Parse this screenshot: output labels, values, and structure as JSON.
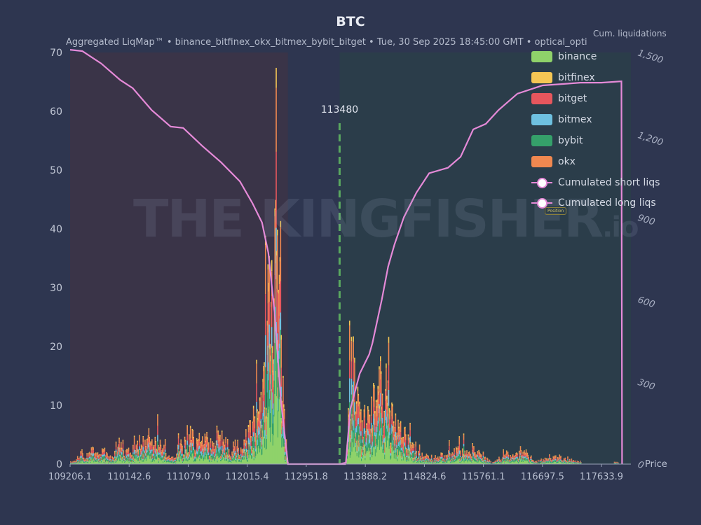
{
  "chart_data": {
    "type": "bar",
    "title": "BTC",
    "subtitle": "Aggregated LiqMap™  •  binance_bitfinex_okx_bitmex_bybit_bitget  •  Tue, 30 Sep 2025 18:45:00 GMT  •  optical_opti",
    "y2label": "Cum. liquidations",
    "xlabel": "Price",
    "ylim": [
      0,
      70
    ],
    "y2lim": [
      0,
      1500
    ],
    "xlim": [
      109206.1,
      118100
    ],
    "x_ticks": [
      "109206.1",
      "110142.6",
      "111079.0",
      "112015.4",
      "112951.8",
      "113888.2",
      "114824.6",
      "115761.1",
      "116697.5",
      "117633.9"
    ],
    "y_ticks": [
      "0",
      "10",
      "20",
      "30",
      "40",
      "50",
      "60",
      "70"
    ],
    "y2_ticks": [
      "0",
      "300",
      "600",
      "900",
      "1,200",
      "1,500"
    ],
    "current_price": 113480,
    "current_price_label": "113480",
    "legend": [
      "binance",
      "bitfinex",
      "bitget",
      "bitmex",
      "bybit",
      "okx",
      "Cumulated short liqs",
      "Cumulated long liqs"
    ],
    "colors": {
      "binance": "#8fd26a",
      "bitfinex": "#f5c654",
      "bitget": "#e6565d",
      "bitmex": "#6ec0e0",
      "bybit": "#35a06a",
      "okx": "#f08850",
      "cum_line": "#e58ad8",
      "current_price": "#5aa860"
    },
    "long_profile": [
      [
        109206,
        0.3
      ],
      [
        109550,
        2.5
      ],
      [
        109800,
        1.5
      ],
      [
        110000,
        4
      ],
      [
        110150,
        2
      ],
      [
        110350,
        5
      ],
      [
        110600,
        4
      ],
      [
        110800,
        1
      ],
      [
        111050,
        5
      ],
      [
        111350,
        4
      ],
      [
        111600,
        5
      ],
      [
        111900,
        3
      ],
      [
        112050,
        6
      ],
      [
        112200,
        10
      ],
      [
        112300,
        25
      ],
      [
        112400,
        45
      ],
      [
        112470,
        54
      ],
      [
        112530,
        40
      ],
      [
        112600,
        8
      ],
      [
        112660,
        0
      ]
    ],
    "short_profile": [
      [
        113580,
        0
      ],
      [
        113650,
        22
      ],
      [
        113720,
        15
      ],
      [
        113800,
        11
      ],
      [
        113900,
        8
      ],
      [
        114000,
        12
      ],
      [
        114120,
        18
      ],
      [
        114250,
        12
      ],
      [
        114400,
        7
      ],
      [
        114550,
        5
      ],
      [
        114750,
        2
      ],
      [
        115000,
        1
      ],
      [
        115300,
        3
      ],
      [
        115600,
        2.5
      ],
      [
        115900,
        0.5
      ],
      [
        116150,
        2
      ],
      [
        116400,
        2.5
      ],
      [
        116600,
        0.5
      ],
      [
        116850,
        1.5
      ],
      [
        117100,
        1
      ],
      [
        117400,
        0
      ],
      [
        117900,
        0.3
      ]
    ],
    "cum_long": [
      [
        109206,
        1510
      ],
      [
        109400,
        1505
      ],
      [
        109700,
        1460
      ],
      [
        110000,
        1400
      ],
      [
        110200,
        1370
      ],
      [
        110500,
        1290
      ],
      [
        110800,
        1230
      ],
      [
        111000,
        1225
      ],
      [
        111300,
        1160
      ],
      [
        111600,
        1100
      ],
      [
        111900,
        1030
      ],
      [
        112100,
        950
      ],
      [
        112250,
        880
      ],
      [
        112350,
        770
      ],
      [
        112450,
        550
      ],
      [
        112550,
        230
      ],
      [
        112660,
        0
      ],
      [
        113580,
        0
      ]
    ],
    "cum_short": [
      [
        113480,
        0
      ],
      [
        113580,
        5
      ],
      [
        113650,
        200
      ],
      [
        113800,
        330
      ],
      [
        113950,
        400
      ],
      [
        114000,
        440
      ],
      [
        114150,
        600
      ],
      [
        114250,
        720
      ],
      [
        114350,
        800
      ],
      [
        114500,
        900
      ],
      [
        114700,
        990
      ],
      [
        114900,
        1060
      ],
      [
        115200,
        1080
      ],
      [
        115400,
        1120
      ],
      [
        115600,
        1220
      ],
      [
        115800,
        1240
      ],
      [
        116000,
        1290
      ],
      [
        116300,
        1350
      ],
      [
        116700,
        1380
      ],
      [
        117000,
        1385
      ],
      [
        117300,
        1390
      ],
      [
        117633,
        1390
      ],
      [
        117950,
        1395
      ],
      [
        117960,
        0
      ]
    ]
  },
  "watermark": {
    "text": "THE KINGFISHER",
    "suffix": ".io",
    "badge": "Position"
  }
}
